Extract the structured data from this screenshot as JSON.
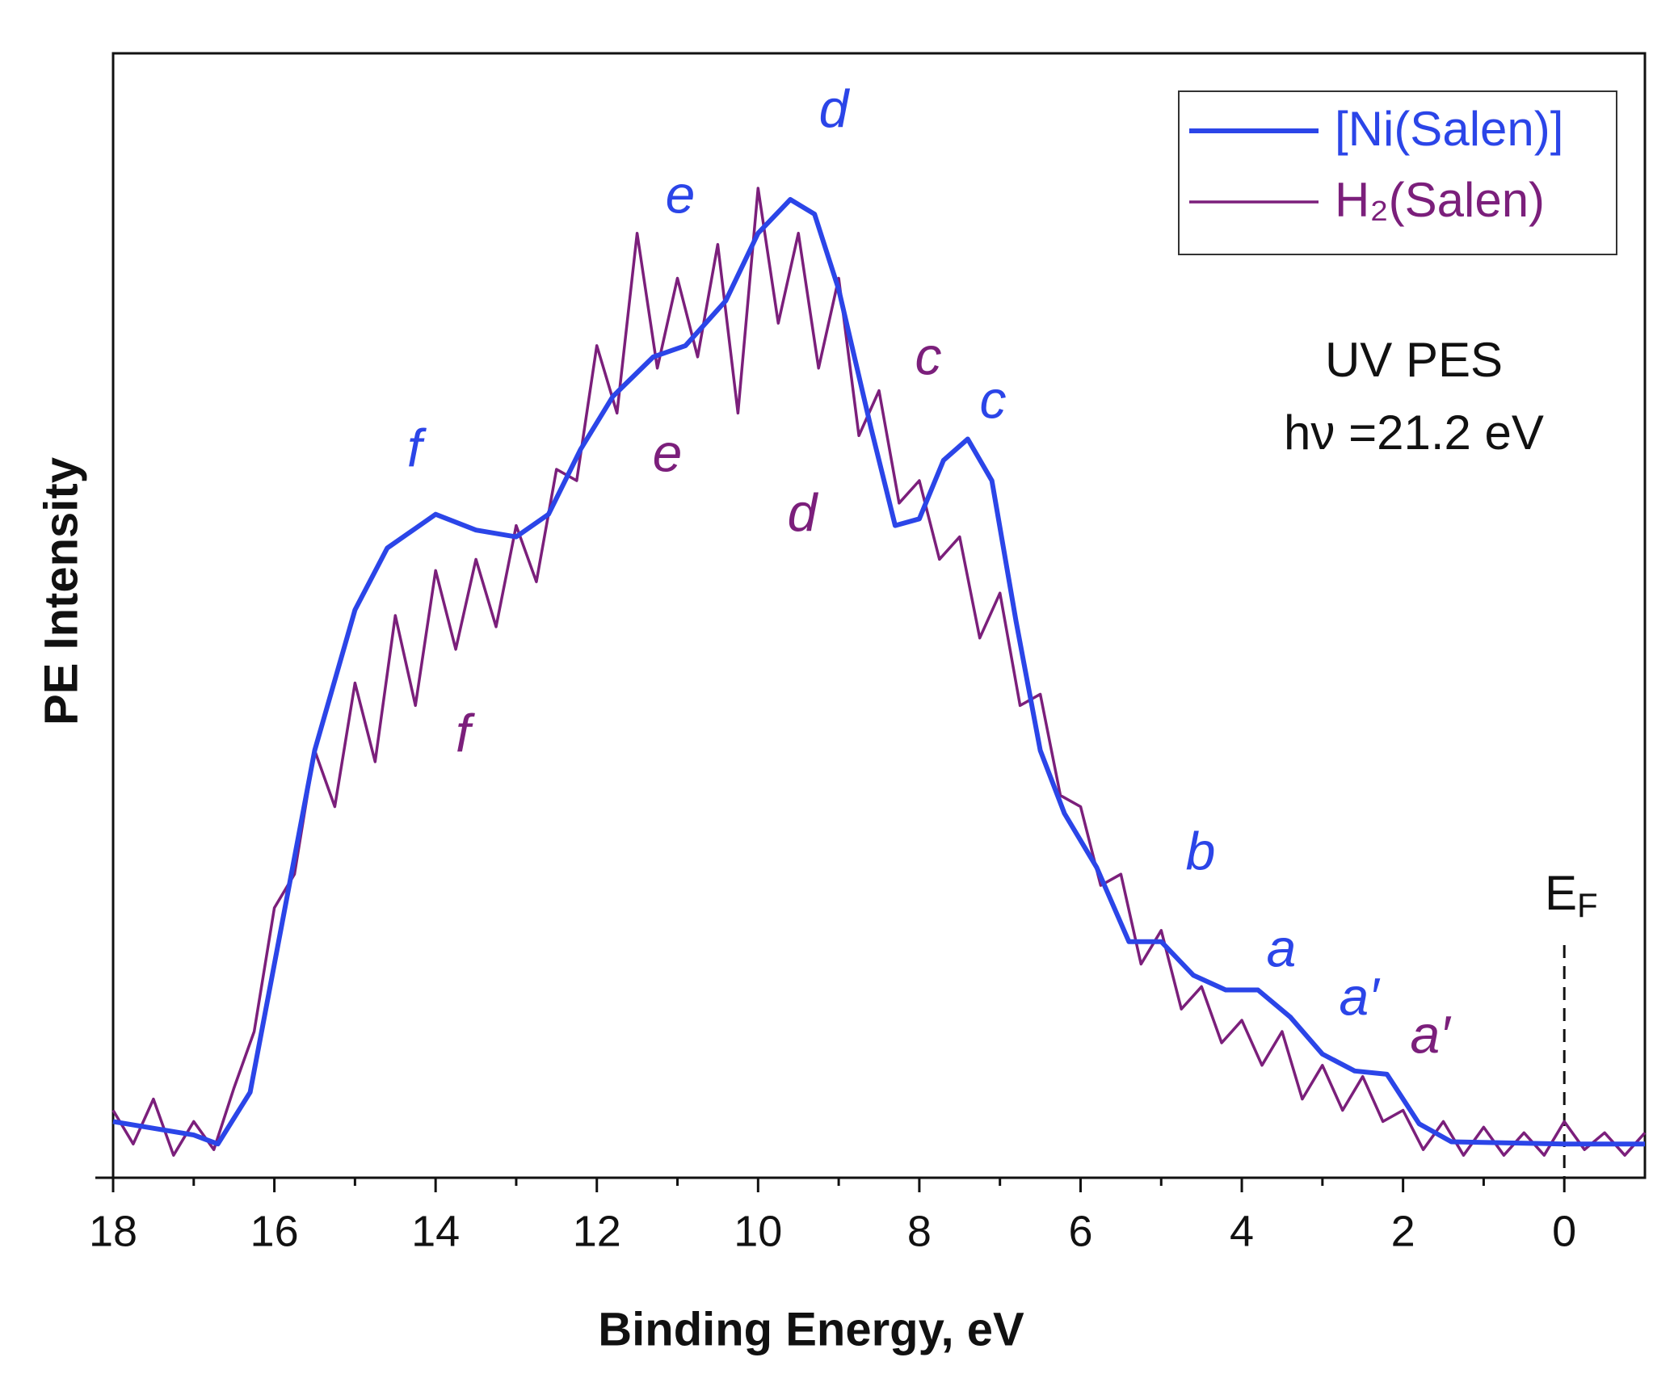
{
  "chart_data": {
    "type": "line",
    "xlabel": "Binding Energy, eV",
    "ylabel": "PE Intensity",
    "xlim": [
      18,
      -1
    ],
    "ylim": [
      0,
      100
    ],
    "xticks": [
      18,
      16,
      14,
      12,
      10,
      8,
      6,
      4,
      2,
      0
    ],
    "xminor_ticks": [
      17,
      15,
      13,
      11,
      9,
      7,
      5,
      3,
      1
    ],
    "legend": "upper right",
    "series": [
      {
        "name": "[Ni(Salen)]",
        "color": "#2b45e8",
        "x": [
          18,
          17,
          16.7,
          16.3,
          16,
          15.5,
          15,
          14.6,
          14,
          13.5,
          13,
          12.6,
          12.2,
          11.8,
          11.3,
          10.9,
          10.4,
          10,
          9.6,
          9.3,
          9,
          8.6,
          8.3,
          8,
          7.7,
          7.4,
          7.1,
          6.8,
          6.5,
          6.2,
          5.8,
          5.4,
          5,
          4.6,
          4.2,
          3.8,
          3.4,
          3,
          2.6,
          2.2,
          1.8,
          1.4,
          0,
          -1
        ],
        "values": [
          5,
          3.8,
          3,
          7.6,
          19,
          38,
          50.5,
          56,
          59,
          57.6,
          57,
          59,
          64.8,
          69.5,
          73,
          74,
          78,
          84,
          87,
          85.7,
          79,
          66.7,
          58,
          58.6,
          63.8,
          65.7,
          62,
          49.5,
          38,
          32.4,
          27.6,
          21,
          21,
          18,
          16.7,
          16.7,
          14.3,
          11,
          9.5,
          9.2,
          4.8,
          3.2,
          3,
          3
        ]
      },
      {
        "name": "H₂(Salen)",
        "color": "#7b1f7b",
        "x": [
          18,
          17.75,
          17.5,
          17.25,
          17,
          16.75,
          16.5,
          16.25,
          16,
          15.75,
          15.5,
          15.25,
          15,
          14.75,
          14.5,
          14.25,
          14,
          13.75,
          13.5,
          13.25,
          13,
          12.75,
          12.5,
          12.25,
          12,
          11.75,
          11.5,
          11.25,
          11,
          10.75,
          10.5,
          10.25,
          10,
          9.75,
          9.5,
          9.25,
          9,
          8.75,
          8.5,
          8.25,
          8,
          7.75,
          7.5,
          7.25,
          7,
          6.75,
          6.5,
          6.25,
          6,
          5.75,
          5.5,
          5.25,
          5,
          4.75,
          4.5,
          4.25,
          4,
          3.75,
          3.5,
          3.25,
          3,
          2.75,
          2.5,
          2.25,
          2,
          1.75,
          1.5,
          1.25,
          1,
          0.75,
          0.5,
          0.25,
          0,
          -0.25,
          -0.5,
          -0.75,
          -1
        ],
        "values": [
          6,
          3,
          7,
          2,
          5,
          2.5,
          8,
          13,
          24,
          27,
          38,
          33,
          44,
          37,
          50,
          42,
          54,
          47,
          55,
          49,
          58,
          53,
          63,
          62,
          74,
          68,
          84,
          72,
          80,
          73,
          83,
          68,
          88,
          76,
          84,
          72,
          80,
          66,
          70,
          60,
          62,
          55,
          57,
          48,
          52,
          42,
          43,
          34,
          33,
          26,
          27,
          19,
          22,
          15,
          17,
          12,
          14,
          10,
          13,
          7,
          10,
          6,
          9,
          5,
          6,
          2.5,
          5,
          2,
          4.5,
          2,
          4,
          2,
          5,
          2.5,
          4,
          2,
          4
        ]
      }
    ],
    "vline_x": 0,
    "annotations": [
      {
        "text": "d",
        "color": "#2b45e8"
      },
      {
        "text": "e",
        "color": "#2b45e8"
      },
      {
        "text": "f",
        "color": "#2b45e8"
      },
      {
        "text": "c",
        "color": "#2b45e8"
      },
      {
        "text": "b",
        "color": "#2b45e8"
      },
      {
        "text": "a",
        "color": "#2b45e8"
      },
      {
        "text": "a′",
        "color": "#2b45e8"
      },
      {
        "text": "e",
        "color": "#7b1f7b"
      },
      {
        "text": "d",
        "color": "#7b1f7b"
      },
      {
        "text": "c",
        "color": "#7b1f7b"
      },
      {
        "text": "f",
        "color": "#7b1f7b"
      },
      {
        "text": "a′",
        "color": "#7b1f7b"
      }
    ],
    "notes": [
      "UV PES",
      "hν =21.2 eV"
    ],
    "fermi_label": {
      "text": "E",
      "subscript": "F"
    }
  }
}
